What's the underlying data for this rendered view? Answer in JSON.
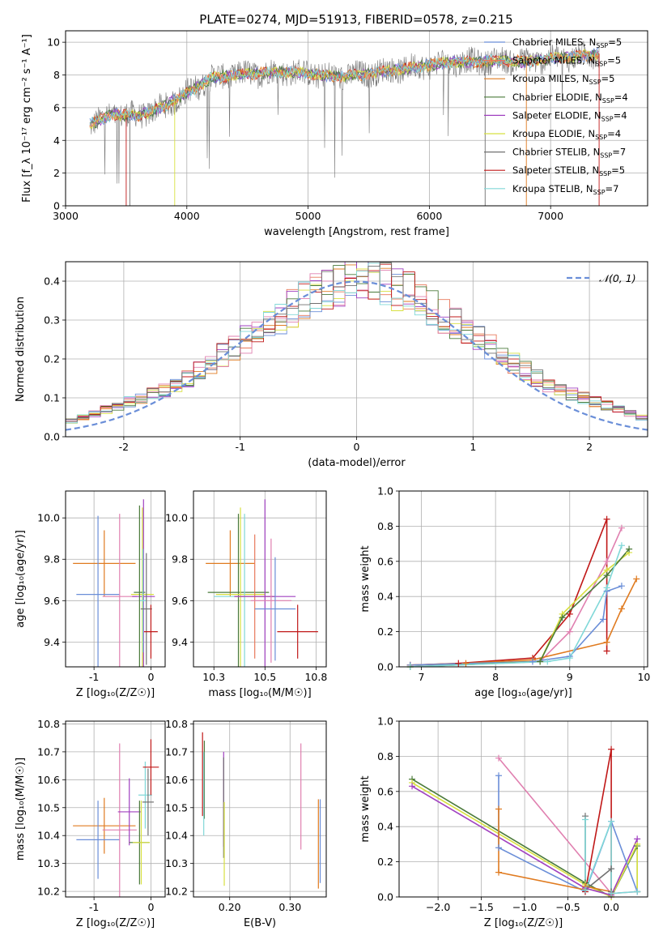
{
  "figure_title": "PLATE=0274, MJD=51913, FIBERID=0578, z=0.215",
  "colors": {
    "chabrier_miles": "#6a8ed8",
    "salpeter_miles": "#e8785a",
    "kroupa_miles": "#e07b20",
    "chabrier_elodie": "#4a7a3a",
    "salpeter_elodie": "#a040c0",
    "kroupa_elodie": "#d8e040",
    "chabrier_stelib": "#707070",
    "salpeter_stelib": "#c01818",
    "kroupa_stelib": "#80d8d8",
    "pink": "#e080b0",
    "gaussian": "#6a8ed8"
  },
  "chart_data": [
    {
      "id": "spectrum",
      "type": "line",
      "title": "PLATE=0274, MJD=51913, FIBERID=0578, z=0.215",
      "xlabel": "wavelength [Angstrom, rest frame]",
      "ylabel": "Flux [f_λ 10⁻¹⁷ erg cm⁻² s⁻¹ A⁻¹]",
      "xlim": [
        3000,
        7800
      ],
      "ylim": [
        0,
        10.7
      ],
      "xticks": [
        3000,
        4000,
        5000,
        6000,
        7000
      ],
      "yticks": [
        0,
        2,
        4,
        6,
        8,
        10
      ],
      "legend_position": "right",
      "legend": [
        "Chabrier MILES, N_SSP=5",
        "Salpeter MILES, N_SSP=5",
        "Kroupa MILES, N_SSP=5",
        "Chabrier ELODIE, N_SSP=4",
        "Salpeter ELODIE, N_SSP=4",
        "Kroupa ELODIE, N_SSP=4",
        "Chabrier STELIB, N_SSP=7",
        "Salpeter STELIB, N_SSP=5",
        "Kroupa STELIB, N_SSP=7"
      ],
      "continuum": {
        "x": [
          3200,
          3400,
          3600,
          3800,
          4000,
          4200,
          4400,
          4600,
          4800,
          5000,
          5200,
          5400,
          5600,
          5800,
          6000,
          6200,
          6400,
          6600,
          6800,
          7000,
          7200,
          7400
        ],
        "y": [
          5.0,
          5.6,
          5.5,
          6.0,
          6.9,
          7.8,
          8.0,
          8.1,
          8.2,
          8.1,
          7.9,
          8.0,
          8.2,
          8.4,
          8.6,
          8.8,
          8.8,
          8.9,
          8.8,
          9.0,
          9.1,
          9.3
        ]
      }
    },
    {
      "id": "residuals",
      "type": "line",
      "xlabel": "(data-model)/error",
      "ylabel": "Normed distribution",
      "xlim": [
        -2.5,
        2.5
      ],
      "ylim": [
        0,
        0.45
      ],
      "xticks": [
        -2,
        -1,
        0,
        1,
        2
      ],
      "yticks": [
        0.0,
        0.1,
        0.2,
        0.3,
        0.4
      ],
      "legend": [
        "𝒩(0, 1)"
      ],
      "legend_position": "top-right",
      "bins_start": -2.5,
      "bin_width": 0.1,
      "base": [
        0.04,
        0.05,
        0.06,
        0.07,
        0.08,
        0.09,
        0.1,
        0.11,
        0.12,
        0.13,
        0.15,
        0.17,
        0.19,
        0.21,
        0.23,
        0.25,
        0.27,
        0.29,
        0.31,
        0.33,
        0.35,
        0.37,
        0.38,
        0.39,
        0.4,
        0.4,
        0.4,
        0.39,
        0.38,
        0.37,
        0.35,
        0.33,
        0.31,
        0.29,
        0.27,
        0.25,
        0.23,
        0.21,
        0.19,
        0.17,
        0.15,
        0.13,
        0.12,
        0.11,
        0.1,
        0.09,
        0.08,
        0.07,
        0.06,
        0.05
      ]
    },
    {
      "id": "z-vs-age",
      "type": "scatter",
      "xlabel": "Z [log₁₀(Z/Z☉)]",
      "ylabel": "age  [log₁₀(age/yr)]",
      "xlim": [
        -1.5,
        0.25
      ],
      "ylim": [
        9.28,
        10.13
      ],
      "xticks": [
        -1,
        0
      ],
      "yticks": [
        9.4,
        9.6,
        9.8,
        10.0
      ],
      "points": [
        {
          "c": "kroupa_miles",
          "x": -0.82,
          "y": 9.78,
          "xe": 0.55,
          "ye": 0.16
        },
        {
          "c": "chabrier_miles",
          "x": -0.93,
          "y": 9.63,
          "xe": 0.38,
          "ye": 0.38
        },
        {
          "c": "pink",
          "x": -0.55,
          "y": 9.62,
          "xe": 0.3,
          "ye": 0.4
        },
        {
          "c": "salpeter_elodie",
          "x": -0.13,
          "y": 9.62,
          "xe": 0.2,
          "ye": 0.47
        },
        {
          "c": "kroupa_elodie",
          "x": -0.15,
          "y": 9.63,
          "xe": 0.2,
          "ye": 0.42
        },
        {
          "c": "chabrier_elodie",
          "x": -0.2,
          "y": 9.64,
          "xe": 0.1,
          "ye": 0.42
        },
        {
          "c": "kroupa_stelib",
          "x": -0.14,
          "y": 9.6,
          "xe": 0.05,
          "ye": 0.25
        },
        {
          "c": "chabrier_stelib",
          "x": -0.08,
          "y": 9.56,
          "xe": 0.1,
          "ye": 0.27
        },
        {
          "c": "salpeter_stelib",
          "x": 0.0,
          "y": 9.45,
          "xe": 0.12,
          "ye": 0.13
        }
      ]
    },
    {
      "id": "mass-vs-age",
      "type": "scatter",
      "xlabel": "mass [log₁₀(M/M☉)]",
      "ylabel": "",
      "xlim": [
        10.15,
        10.8
      ],
      "ylim": [
        9.28,
        10.13
      ],
      "xticks": [
        10.25,
        10.5,
        10.75
      ],
      "yticks": [
        9.4,
        9.6,
        9.8,
        10.0
      ],
      "points": [
        {
          "c": "kroupa_miles",
          "x": 10.33,
          "y": 9.78,
          "xe": 0.12,
          "ye": 0.16
        },
        {
          "c": "chabrier_elodie",
          "x": 10.37,
          "y": 9.64,
          "xe": 0.15,
          "ye": 0.38
        },
        {
          "c": "kroupa_elodie",
          "x": 10.38,
          "y": 9.63,
          "xe": 0.12,
          "ye": 0.42
        },
        {
          "c": "kroupa_stelib",
          "x": 10.4,
          "y": 9.62,
          "xe": 0.15,
          "ye": 0.4
        },
        {
          "c": "salpeter_miles",
          "x": 10.45,
          "y": 9.62,
          "xe": 0.1,
          "ye": 0.3
        },
        {
          "c": "salpeter_elodie",
          "x": 10.5,
          "y": 9.62,
          "xe": 0.15,
          "ye": 0.47
        },
        {
          "c": "pink",
          "x": 10.53,
          "y": 9.6,
          "xe": 0.1,
          "ye": 0.3
        },
        {
          "c": "chabrier_miles",
          "x": 10.55,
          "y": 9.56,
          "xe": 0.1,
          "ye": 0.25
        },
        {
          "c": "salpeter_stelib",
          "x": 10.66,
          "y": 9.45,
          "xe": 0.1,
          "ye": 0.13
        }
      ]
    },
    {
      "id": "age-vs-weight",
      "type": "line",
      "xlabel": "age  [log₁₀(age/yr)]",
      "ylabel": "mass weight",
      "xlim": [
        6.7,
        10.05
      ],
      "ylim": [
        0,
        1.0
      ],
      "xticks": [
        7,
        8,
        9,
        10
      ],
      "yticks": [
        0.0,
        0.2,
        0.4,
        0.6,
        0.8,
        1.0
      ],
      "series": [
        {
          "c": "salpeter_stelib",
          "x": [
            6.85,
            7.5,
            8.5,
            9.0,
            9.5,
            9.5
          ],
          "y": [
            0.01,
            0.02,
            0.05,
            0.3,
            0.84,
            0.09
          ]
        },
        {
          "c": "pink",
          "x": [
            6.85,
            8.6,
            9.0,
            9.5,
            9.7
          ],
          "y": [
            0.01,
            0.03,
            0.2,
            0.6,
            0.79
          ]
        },
        {
          "c": "kroupa_miles",
          "x": [
            6.85,
            7.6,
            8.5,
            9.5,
            9.7,
            9.9
          ],
          "y": [
            0.01,
            0.02,
            0.04,
            0.14,
            0.33,
            0.5
          ]
        },
        {
          "c": "chabrier_miles",
          "x": [
            6.85,
            8.5,
            9.0,
            9.45,
            9.5,
            9.7
          ],
          "y": [
            0.01,
            0.03,
            0.06,
            0.27,
            0.43,
            0.46
          ]
        },
        {
          "c": "kroupa_elodie",
          "x": [
            6.85,
            8.6,
            8.9,
            9.5,
            9.8
          ],
          "y": [
            0.0,
            0.03,
            0.3,
            0.55,
            0.65
          ]
        },
        {
          "c": "chabrier_elodie",
          "x": [
            6.85,
            8.6,
            8.9,
            9.5,
            9.8
          ],
          "y": [
            0.0,
            0.03,
            0.28,
            0.52,
            0.67
          ]
        },
        {
          "c": "kroupa_stelib",
          "x": [
            6.85,
            8.7,
            9.0,
            9.5,
            9.7
          ],
          "y": [
            0.0,
            0.03,
            0.05,
            0.45,
            0.69
          ]
        }
      ]
    },
    {
      "id": "z-vs-mass",
      "type": "scatter",
      "xlabel": "Z [log₁₀(Z/Z☉)]",
      "ylabel": "mass [log₁₀(M/M☉)]",
      "xlim": [
        -1.5,
        0.25
      ],
      "ylim": [
        10.18,
        10.81
      ],
      "xticks": [
        -1,
        0
      ],
      "yticks": [
        10.2,
        10.3,
        10.4,
        10.5,
        10.6,
        10.7,
        10.8
      ],
      "points": [
        {
          "c": "kroupa_miles",
          "x": -0.82,
          "y": 10.435,
          "xe": 0.55,
          "ye": 0.1
        },
        {
          "c": "chabrier_miles",
          "x": -0.93,
          "y": 10.385,
          "xe": 0.38,
          "ye": 0.14
        },
        {
          "c": "pink",
          "x": -0.55,
          "y": 10.42,
          "xe": 0.3,
          "ye": 0.31
        },
        {
          "c": "salpeter_elodie",
          "x": -0.38,
          "y": 10.485,
          "xe": 0.2,
          "ye": 0.12
        },
        {
          "c": "chabrier_elodie",
          "x": -0.2,
          "y": 10.375,
          "xe": 0.18,
          "ye": 0.15
        },
        {
          "c": "kroupa_elodie",
          "x": -0.17,
          "y": 10.375,
          "xe": 0.15,
          "ye": 0.15
        },
        {
          "c": "kroupa_stelib",
          "x": -0.1,
          "y": 10.545,
          "xe": 0.12,
          "ye": 0.12
        },
        {
          "c": "chabrier_stelib",
          "x": -0.05,
          "y": 10.52,
          "xe": 0.1,
          "ye": 0.12
        },
        {
          "c": "salpeter_stelib",
          "x": 0.0,
          "y": 10.645,
          "xe": 0.14,
          "ye": 0.1
        }
      ]
    },
    {
      "id": "ebv-vs-mass",
      "type": "scatter",
      "xlabel": "E(B-V)",
      "ylabel": "",
      "xlim": [
        0.14,
        0.36
      ],
      "ylim": [
        10.18,
        10.81
      ],
      "xticks": [
        0.2,
        0.3
      ],
      "yticks": [
        10.2,
        10.3,
        10.4,
        10.5,
        10.6,
        10.7,
        10.8
      ],
      "points": [
        {
          "c": "salpeter_stelib",
          "x": 0.155,
          "y": 10.62,
          "xe": 0,
          "ye": 0.15
        },
        {
          "c": "chabrier_elodie",
          "x": 0.158,
          "y": 10.6,
          "xe": 0,
          "ye": 0.14
        },
        {
          "c": "kroupa_stelib",
          "x": 0.157,
          "y": 10.55,
          "xe": 0,
          "ye": 0.15
        },
        {
          "c": "salpeter_elodie",
          "x": 0.19,
          "y": 10.53,
          "xe": 0,
          "ye": 0.17
        },
        {
          "c": "chabrier_stelib",
          "x": 0.19,
          "y": 10.5,
          "xe": 0,
          "ye": 0.18
        },
        {
          "c": "kroupa_elodie",
          "x": 0.191,
          "y": 10.37,
          "xe": 0,
          "ye": 0.15
        },
        {
          "c": "pink",
          "x": 0.318,
          "y": 10.54,
          "xe": 0,
          "ye": 0.19
        },
        {
          "c": "chabrier_miles",
          "x": 0.35,
          "y": 10.38,
          "xe": 0,
          "ye": 0.15
        },
        {
          "c": "kroupa_miles",
          "x": 0.347,
          "y": 10.37,
          "xe": 0,
          "ye": 0.16
        }
      ]
    },
    {
      "id": "z-vs-weight",
      "type": "line",
      "xlabel": "Z [log₁₀(Z/Z☉)]",
      "ylabel": "mass weight",
      "xlim": [
        -2.45,
        0.42
      ],
      "ylim": [
        0,
        1.0
      ],
      "xticks": [
        -2.0,
        -1.5,
        -1.0,
        -0.5,
        0.0
      ],
      "yticks": [
        0.0,
        0.2,
        0.4,
        0.6,
        0.8,
        1.0
      ],
      "series": [
        {
          "c": "chabrier_elodie",
          "x": [
            -2.3,
            -0.3,
            0.0,
            0.3,
            0.3
          ],
          "y": [
            0.67,
            0.08,
            0.0,
            0.29,
            0.03
          ]
        },
        {
          "c": "kroupa_elodie",
          "x": [
            -2.3,
            -0.3,
            0.0,
            0.3,
            0.3
          ],
          "y": [
            0.65,
            0.07,
            0.0,
            0.3,
            0.03
          ]
        },
        {
          "c": "salpeter_elodie",
          "x": [
            -2.3,
            -0.3,
            0.0,
            0.3
          ],
          "y": [
            0.63,
            0.05,
            0.01,
            0.33
          ]
        },
        {
          "c": "pink",
          "x": [
            -1.3,
            0.0,
            0.3
          ],
          "y": [
            0.79,
            0.02,
            0.03
          ]
        },
        {
          "c": "chabrier_miles",
          "x": [
            -1.3,
            -1.3,
            -0.3,
            0.0,
            0.3
          ],
          "y": [
            0.69,
            0.28,
            0.03,
            0.43,
            0.03
          ]
        },
        {
          "c": "kroupa_miles",
          "x": [
            -1.3,
            -1.3,
            -0.3,
            -0.3,
            0.0
          ],
          "y": [
            0.5,
            0.14,
            0.04,
            0.06,
            0.03
          ]
        },
        {
          "c": "salpeter_stelib",
          "x": [
            -0.3,
            0.0,
            0.0
          ],
          "y": [
            0.03,
            0.84,
            0.02
          ]
        },
        {
          "c": "chabrier_stelib",
          "x": [
            -0.3,
            -0.3,
            0.0,
            0.0
          ],
          "y": [
            0.46,
            0.04,
            0.16,
            0.03
          ]
        },
        {
          "c": "kroupa_stelib",
          "x": [
            -0.3,
            -0.3,
            0.0,
            0.0,
            0.3
          ],
          "y": [
            0.44,
            0.04,
            0.43,
            0.02,
            0.03
          ]
        }
      ]
    }
  ]
}
